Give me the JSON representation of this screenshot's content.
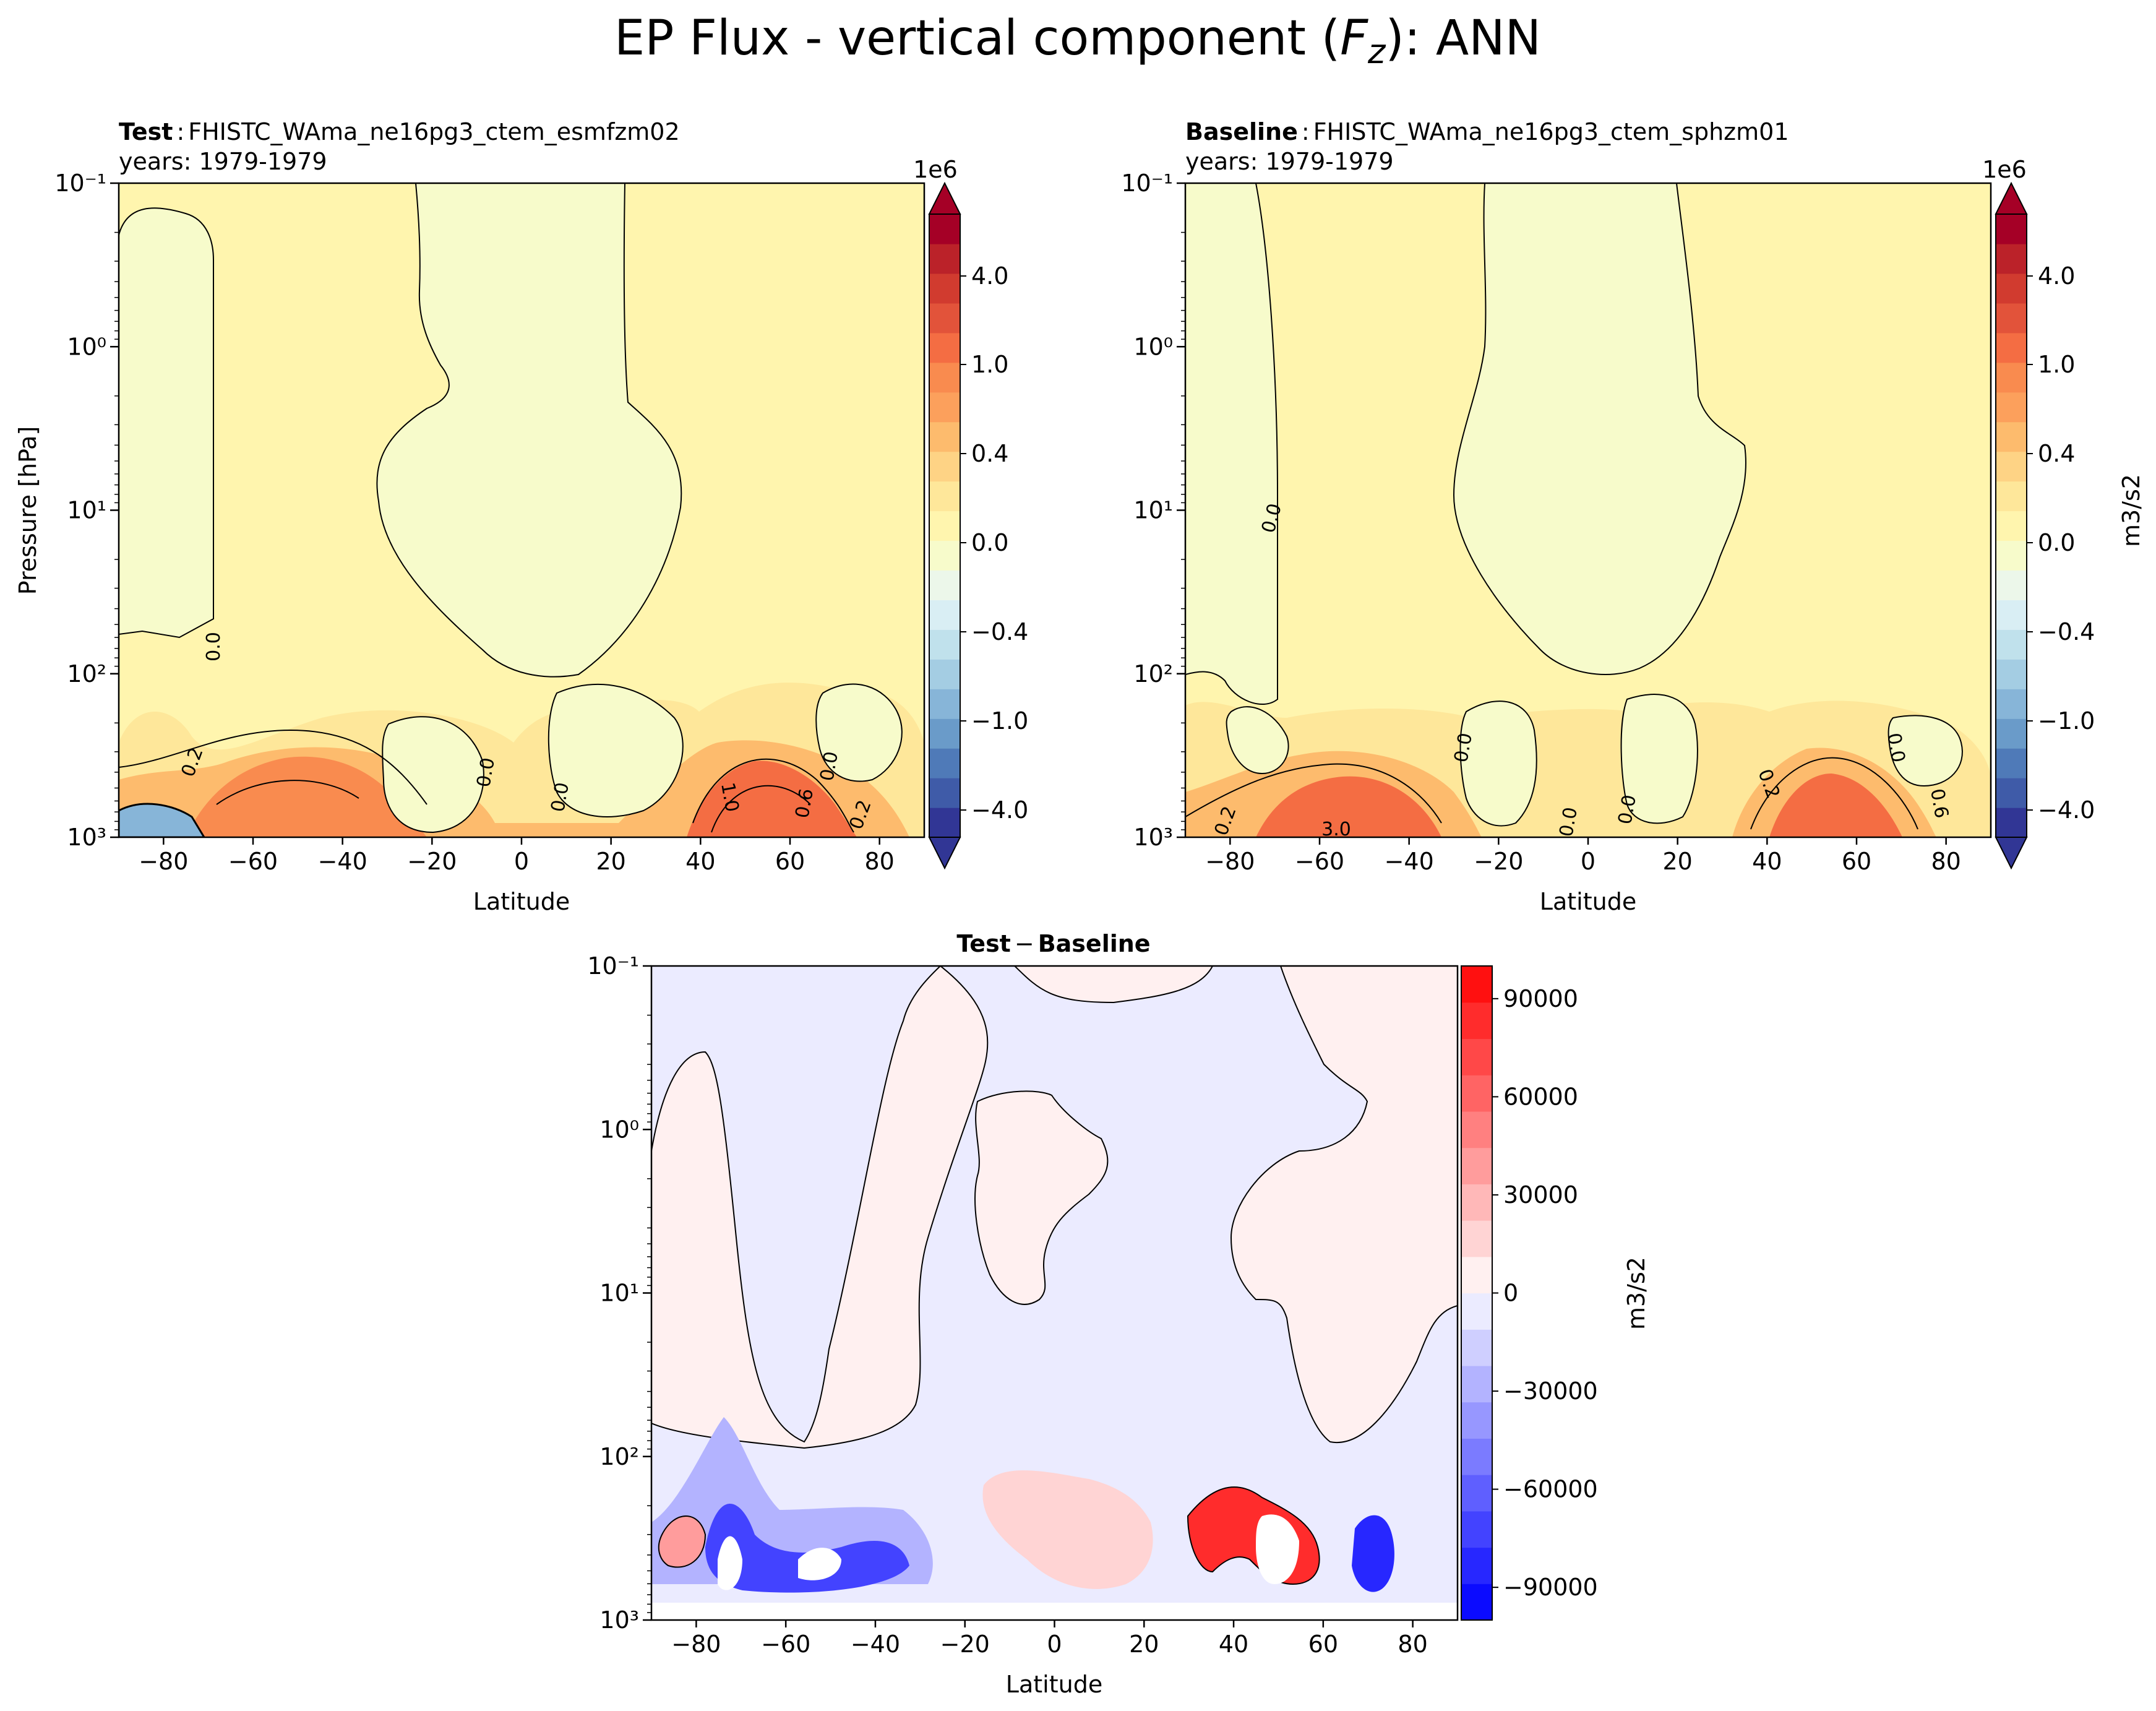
{
  "figure": {
    "title_main": "EP Flux - vertical component (",
    "title_var": "F",
    "title_sub": "z",
    "title_tail": "): ANN"
  },
  "chart_data": [
    {
      "id": "test",
      "type": "contour",
      "label_bold": "Test",
      "label_sep": ":",
      "case_name": "FHISTC_WAma_ne16pg3_ctem_esmfzm02",
      "years": "years: 1979-1979",
      "xlabel": "Latitude",
      "ylabel": "Pressure [hPa]",
      "x_ticks": [
        "−80",
        "−60",
        "−40",
        "−20",
        "0",
        "20",
        "40",
        "60",
        "80"
      ],
      "x_values": [
        -80,
        -60,
        -40,
        -20,
        0,
        20,
        40,
        60,
        80
      ],
      "xlim": [
        -90,
        90
      ],
      "y_ticks": [
        "10⁻¹",
        "10⁰",
        "10¹",
        "10²",
        "10³"
      ],
      "y_exponents": [
        -1,
        0,
        1,
        2,
        3
      ],
      "ylim_hpa": [
        1000,
        0.1
      ],
      "yscale": "log",
      "contour_labels": [
        "0.0",
        "0.2",
        "1.0",
        "0.6",
        "0.0",
        "0.0",
        "0.0",
        "0.2"
      ],
      "colorbar": {
        "scale_label": "1e6",
        "tick_labels": [
          "4.0",
          "1.0",
          "0.4",
          "0.0",
          "−0.4",
          "−1.0",
          "−4.0"
        ],
        "tick_values": [
          4.0,
          1.0,
          0.4,
          0.0,
          -0.4,
          -1.0,
          -4.0
        ],
        "units": "",
        "colors": [
          "#313695",
          "#3f5ba8",
          "#4f7ab8",
          "#6a9bc9",
          "#87b5d8",
          "#a4cde3",
          "#c0e1ec",
          "#d9eef4",
          "#ecf7ea",
          "#f7fbcb",
          "#fff5ae",
          "#fee79a",
          "#fed385",
          "#fdbb6d",
          "#fca05c",
          "#f98b4f",
          "#f46d43",
          "#e2533a",
          "#d13b2f",
          "#bb2229",
          "#a50026"
        ]
      }
    },
    {
      "id": "baseline",
      "type": "contour",
      "label_bold": "Baseline",
      "label_sep": ":",
      "case_name": "FHISTC_WAma_ne16pg3_ctem_sphzm01",
      "years": "years: 1979-1979",
      "xlabel": "Latitude",
      "x_ticks": [
        "−80",
        "−60",
        "−40",
        "−20",
        "0",
        "20",
        "40",
        "60",
        "80"
      ],
      "x_values": [
        -80,
        -60,
        -40,
        -20,
        0,
        20,
        40,
        60,
        80
      ],
      "xlim": [
        -90,
        90
      ],
      "y_ticks": [
        "10⁻¹",
        "10⁰",
        "10¹",
        "10²",
        "10³"
      ],
      "y_exponents": [
        -1,
        0,
        1,
        2,
        3
      ],
      "ylim_hpa": [
        1000,
        0.1
      ],
      "yscale": "log",
      "contour_labels": [
        "0.0",
        "0.2",
        "3.0",
        "0.0",
        "0.0",
        "0.0",
        "0.2",
        "0.6",
        "0.0"
      ],
      "colorbar": {
        "scale_label": "1e6",
        "tick_labels": [
          "4.0",
          "1.0",
          "0.4",
          "0.0",
          "−0.4",
          "−1.0",
          "−4.0"
        ],
        "tick_values": [
          4.0,
          1.0,
          0.4,
          0.0,
          -0.4,
          -1.0,
          -4.0
        ],
        "units": "m3/s2"
      }
    },
    {
      "id": "diff",
      "type": "contour",
      "title_bold_a": "Test",
      "title_minus": "−",
      "title_bold_b": "Baseline",
      "xlabel": "Latitude",
      "x_ticks": [
        "−80",
        "−60",
        "−40",
        "−20",
        "0",
        "20",
        "40",
        "60",
        "80"
      ],
      "x_values": [
        -80,
        -60,
        -40,
        -20,
        0,
        20,
        40,
        60,
        80
      ],
      "xlim": [
        -90,
        90
      ],
      "y_ticks": [
        "10⁻¹",
        "10⁰",
        "10¹",
        "10²",
        "10³"
      ],
      "y_exponents": [
        -1,
        0,
        1,
        2,
        3
      ],
      "ylim_hpa": [
        1000,
        0.1
      ],
      "yscale": "log",
      "colorbar": {
        "tick_labels": [
          "90000",
          "60000",
          "30000",
          "0",
          "−30000",
          "−60000",
          "−90000"
        ],
        "tick_values": [
          90000,
          60000,
          30000,
          0,
          -30000,
          -60000,
          -90000
        ],
        "vmin": -100000,
        "vmax": 100000,
        "units": "m3/s2",
        "colors": [
          "#0b0bff",
          "#2727ff",
          "#4343ff",
          "#5f5fff",
          "#7b7bff",
          "#9797ff",
          "#b3b3ff",
          "#cfcfff",
          "#ebebff",
          "#fff0f0",
          "#ffd4d4",
          "#ffb8b8",
          "#ff9c9c",
          "#ff8080",
          "#ff6464",
          "#ff4848",
          "#ff2c2c",
          "#ff1010"
        ]
      }
    }
  ]
}
